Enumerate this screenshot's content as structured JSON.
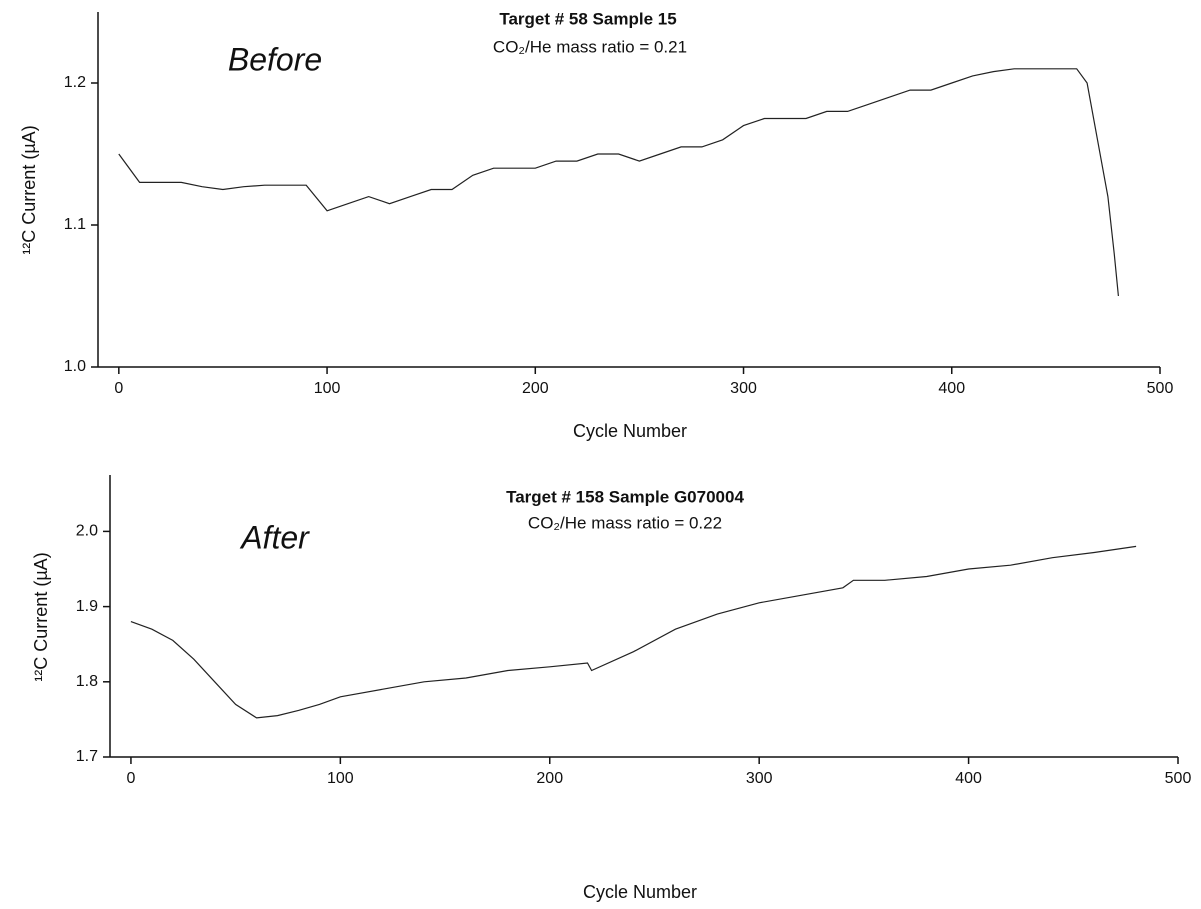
{
  "chart_data": [
    {
      "type": "line",
      "title": "Target # 58  Sample 15",
      "subtitle": "CO₂/He mass ratio = 0.21",
      "annotation": "Before",
      "x_label": "Cycle Number",
      "y_label": "¹²C Current (µA)",
      "color": "#222222",
      "x": [
        0,
        10,
        20,
        30,
        40,
        50,
        60,
        70,
        80,
        90,
        100,
        110,
        120,
        130,
        140,
        150,
        160,
        170,
        180,
        190,
        200,
        210,
        220,
        230,
        240,
        250,
        260,
        270,
        280,
        290,
        300,
        310,
        320,
        330,
        340,
        350,
        360,
        370,
        380,
        390,
        400,
        410,
        420,
        430,
        440,
        450,
        460,
        465,
        470,
        475,
        478,
        480
      ],
      "values": [
        1.15,
        1.13,
        1.13,
        1.13,
        1.127,
        1.125,
        1.127,
        1.128,
        1.128,
        1.128,
        1.11,
        1.115,
        1.12,
        1.115,
        1.12,
        1.125,
        1.125,
        1.135,
        1.14,
        1.14,
        1.14,
        1.145,
        1.145,
        1.15,
        1.15,
        1.145,
        1.15,
        1.155,
        1.155,
        1.16,
        1.17,
        1.175,
        1.175,
        1.175,
        1.18,
        1.18,
        1.185,
        1.19,
        1.195,
        1.195,
        1.2,
        1.205,
        1.208,
        1.21,
        1.21,
        1.21,
        1.21,
        1.2,
        1.16,
        1.12,
        1.08,
        1.05
      ],
      "xlim": [
        -10,
        500
      ],
      "ylim": [
        1.0,
        1.25
      ],
      "xticks": [
        0,
        100,
        200,
        300,
        400,
        500
      ],
      "yticks": [
        {
          "value": 1,
          "label": "1.0"
        },
        1.1,
        1.2
      ]
    },
    {
      "type": "line",
      "title": "Target # 158  Sample G070004",
      "subtitle": "CO₂/He mass ratio = 0.22",
      "annotation": "After",
      "x_label": "Cycle Number",
      "y_label": "¹²C Current (µA)",
      "color": "#222222",
      "x": [
        0,
        10,
        20,
        30,
        40,
        50,
        60,
        70,
        80,
        90,
        100,
        120,
        140,
        160,
        180,
        200,
        218,
        220,
        240,
        260,
        280,
        300,
        320,
        340,
        345,
        360,
        380,
        400,
        420,
        440,
        460,
        480
      ],
      "values": [
        1.88,
        1.87,
        1.855,
        1.83,
        1.8,
        1.77,
        1.752,
        1.755,
        1.762,
        1.77,
        1.78,
        1.79,
        1.8,
        1.805,
        1.815,
        1.82,
        1.825,
        1.815,
        1.84,
        1.87,
        1.89,
        1.905,
        1.915,
        1.925,
        1.935,
        1.935,
        1.94,
        1.95,
        1.955,
        1.965,
        1.972,
        1.98
      ],
      "xlim": [
        -10,
        500
      ],
      "ylim": [
        1.7,
        2.075
      ],
      "xticks": [
        0,
        100,
        200,
        300,
        400,
        500
      ],
      "yticks": [
        1.7,
        1.8,
        1.9,
        {
          "value": 2,
          "label": "2.0"
        }
      ]
    }
  ]
}
